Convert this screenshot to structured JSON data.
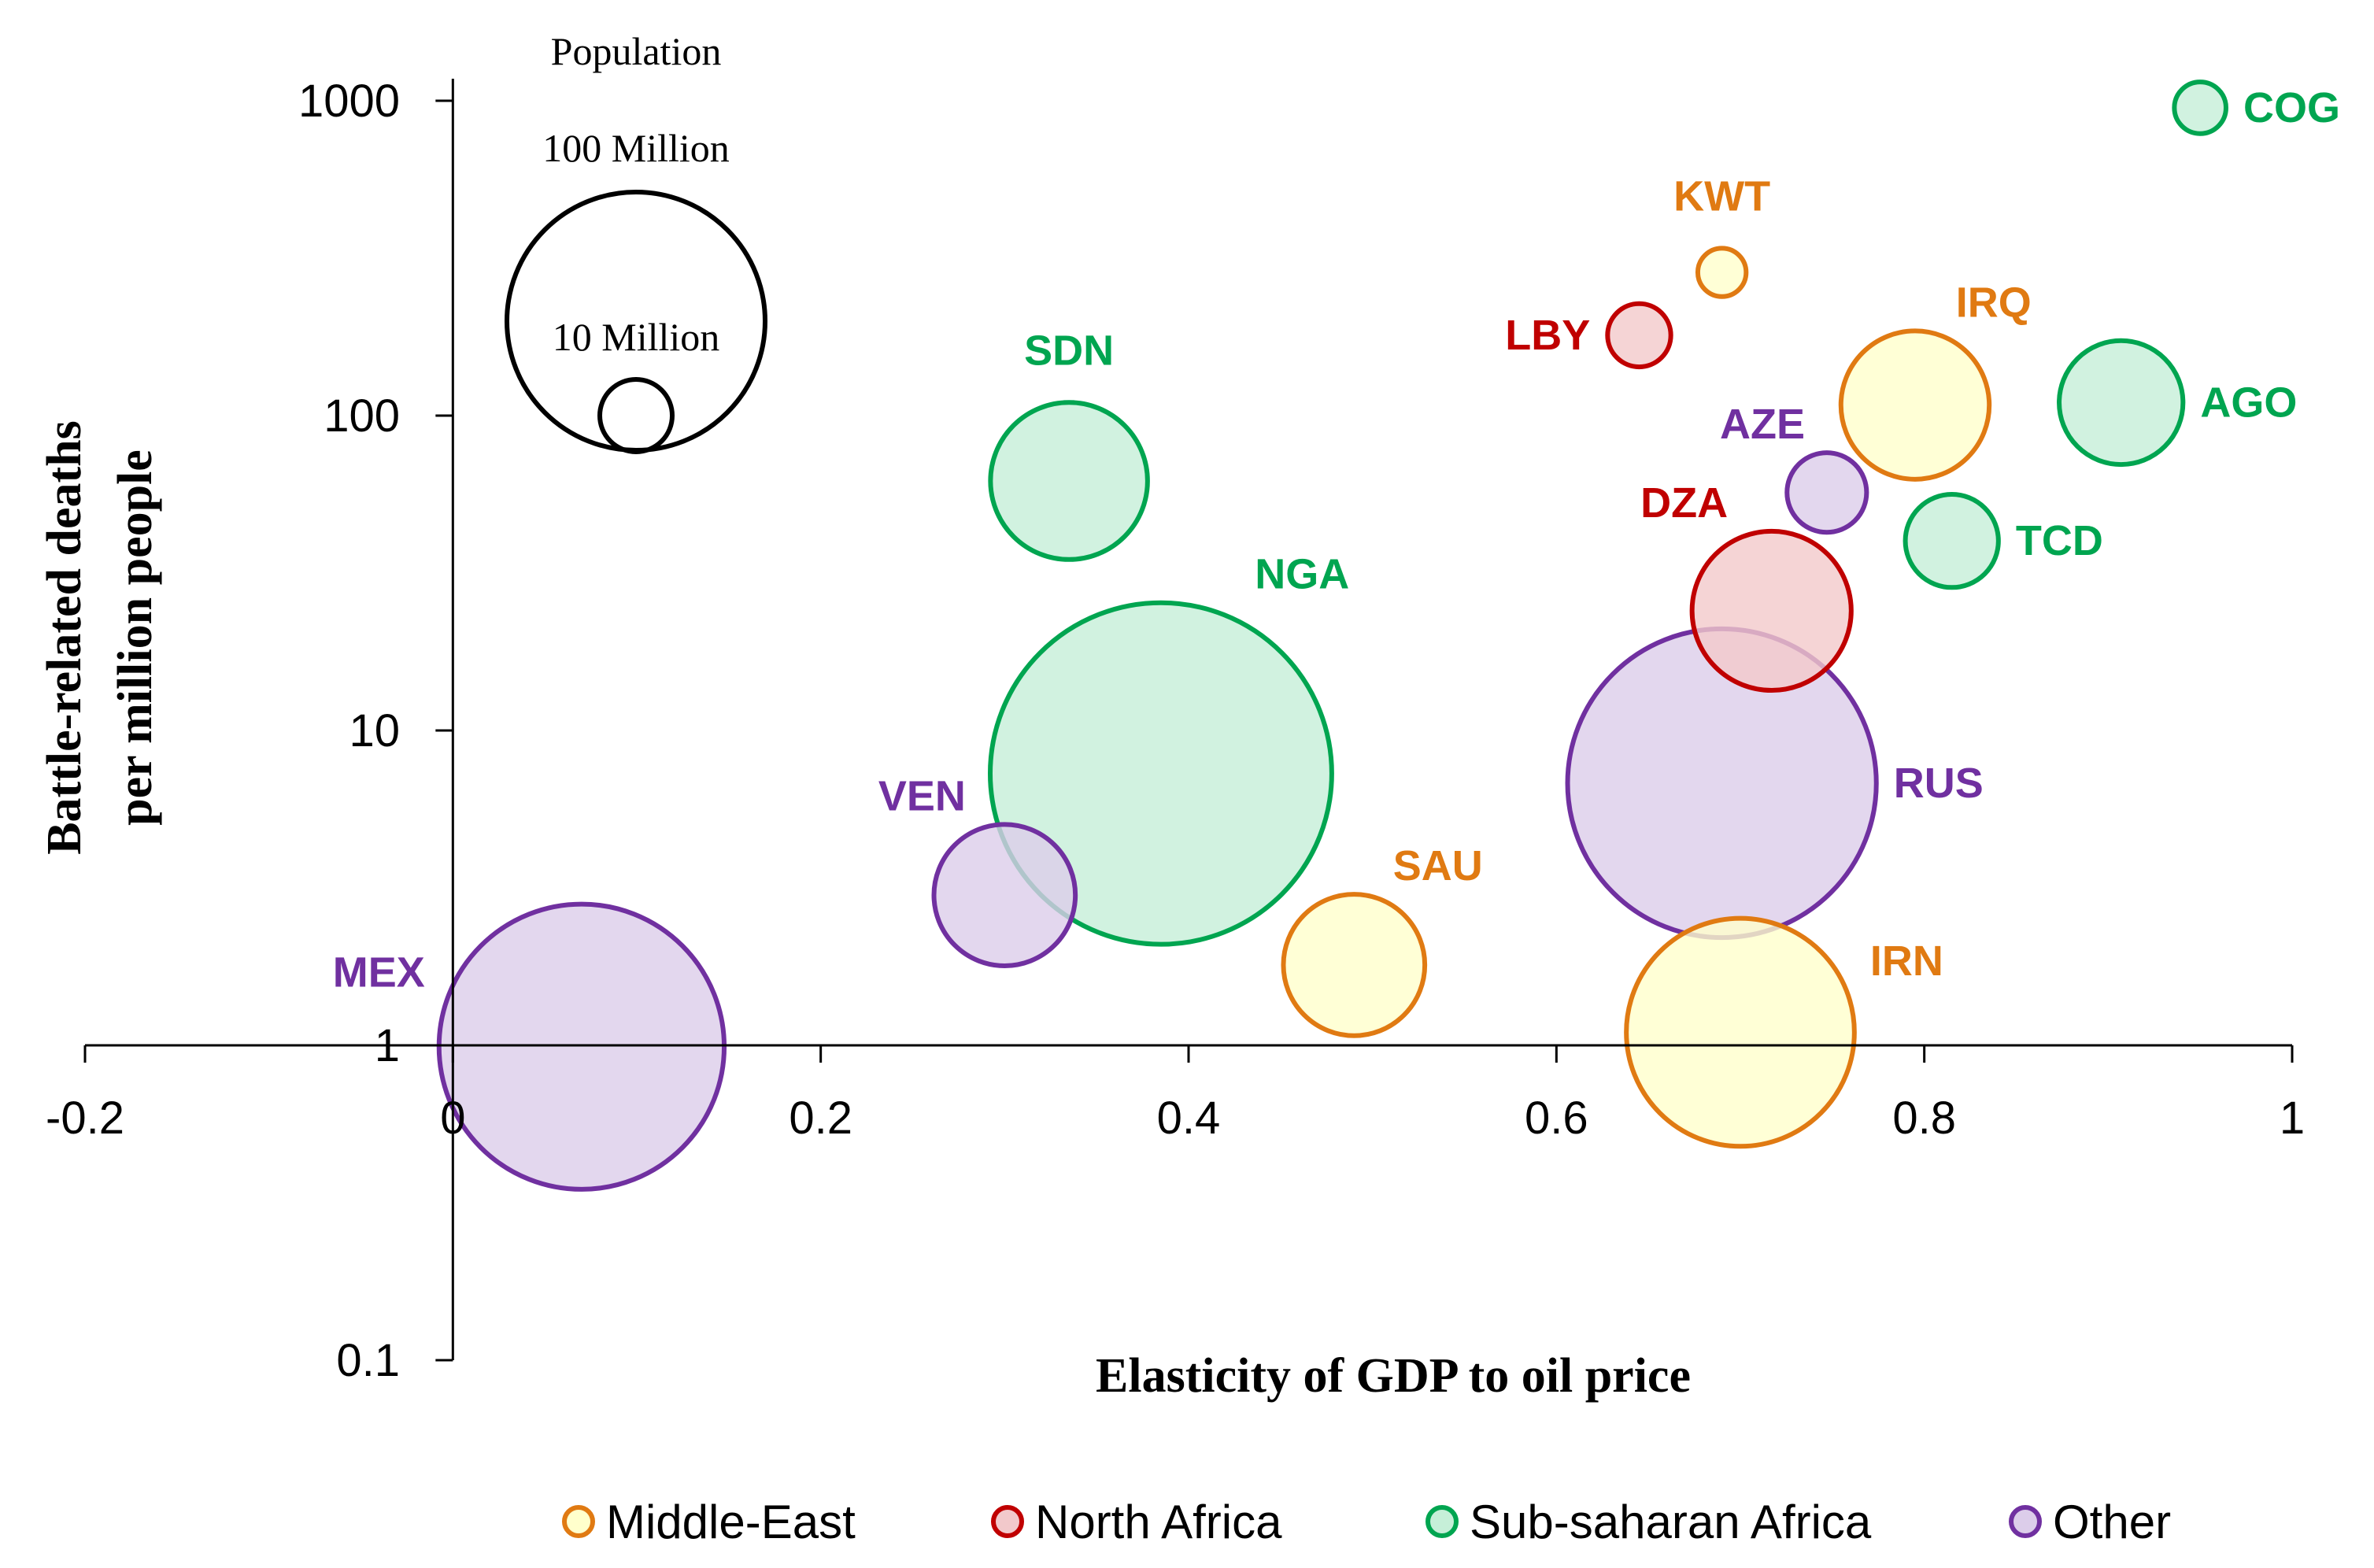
{
  "colors": {
    "middle_east": {
      "stroke": "#E07A12",
      "fill": "#FFFFCC"
    },
    "north_africa": {
      "stroke": "#C00000",
      "fill": "#F2C9CB"
    },
    "sub_saharan_africa": {
      "stroke": "#00A550",
      "fill": "#C6EFD8"
    },
    "other": {
      "stroke": "#7030A0",
      "fill": "#DCCDEA"
    }
  },
  "chart_data": {
    "type": "scatter",
    "subtype": "bubble",
    "xlabel": "Elasticity of GDP to oil price",
    "ylabel_line1": "Battle-related deaths",
    "ylabel_line2": "per million people",
    "xlim": [
      -0.2,
      1
    ],
    "ylim": [
      0.1,
      1000
    ],
    "yscale": "log",
    "x_ticks": [
      "-0.2",
      "0",
      "0.2",
      "0.4",
      "0.6",
      "0.8",
      "1"
    ],
    "x_tick_values": [
      -0.2,
      0,
      0.2,
      0.4,
      0.6,
      0.8,
      1
    ],
    "y_ticks": [
      "0.1",
      "1",
      "10",
      "100",
      "1000"
    ],
    "y_tick_values": [
      0.1,
      1,
      10,
      100,
      1000
    ],
    "legend": [
      {
        "label": "Middle-East",
        "group": "middle_east"
      },
      {
        "label": "North Africa",
        "group": "north_africa"
      },
      {
        "label": "Sub-saharan Africa",
        "group": "sub_saharan_africa"
      },
      {
        "label": "Other",
        "group": "other"
      }
    ],
    "size_key": {
      "title": "Population",
      "entries": [
        {
          "label": "100 Million",
          "population_millions": 100
        },
        {
          "label": "10 Million",
          "population_millions": 10
        }
      ]
    },
    "points": [
      {
        "label": "COG",
        "group": "sub_saharan_africa",
        "x": 0.95,
        "y": 950,
        "population_millions": 4
      },
      {
        "label": "KWT",
        "group": "middle_east",
        "x": 0.69,
        "y": 285,
        "population_millions": 3.5
      },
      {
        "label": "IRQ",
        "group": "middle_east",
        "x": 0.795,
        "y": 108,
        "population_millions": 33
      },
      {
        "label": "LBY",
        "group": "north_africa",
        "x": 0.645,
        "y": 180,
        "population_millions": 6
      },
      {
        "label": "AGO",
        "group": "sub_saharan_africa",
        "x": 0.907,
        "y": 110,
        "population_millions": 23
      },
      {
        "label": "AZE",
        "group": "other",
        "x": 0.747,
        "y": 57,
        "population_millions": 9.5
      },
      {
        "label": "TCD",
        "group": "sub_saharan_africa",
        "x": 0.815,
        "y": 40,
        "population_millions": 13
      },
      {
        "label": "SDN",
        "group": "sub_saharan_africa",
        "x": 0.335,
        "y": 62,
        "population_millions": 37
      },
      {
        "label": "DZA",
        "group": "north_africa",
        "x": 0.717,
        "y": 24,
        "population_millions": 38
      },
      {
        "label": "NGA",
        "group": "sub_saharan_africa",
        "x": 0.385,
        "y": 7.3,
        "population_millions": 175
      },
      {
        "label": "RUS",
        "group": "other",
        "x": 0.69,
        "y": 6.8,
        "population_millions": 143
      },
      {
        "label": "VEN",
        "group": "other",
        "x": 0.3,
        "y": 3.0,
        "population_millions": 30
      },
      {
        "label": "SAU",
        "group": "middle_east",
        "x": 0.49,
        "y": 1.8,
        "population_millions": 30
      },
      {
        "label": "IRN",
        "group": "middle_east",
        "x": 0.7,
        "y": 1.1,
        "population_millions": 78
      },
      {
        "label": "MEX",
        "group": "other",
        "x": 0.07,
        "y": 0.99,
        "population_millions": 122
      }
    ]
  }
}
